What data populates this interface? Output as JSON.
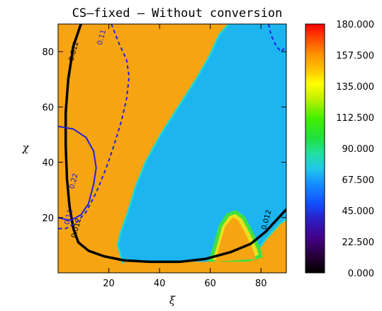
{
  "chart_data": {
    "type": "heatmap",
    "title": "CS–fixed – Without conversion",
    "xlabel": "ξ",
    "ylabel": "χ",
    "xlim": [
      0,
      90
    ],
    "ylim": [
      0,
      90
    ],
    "x_ticks": [
      20,
      40,
      60,
      80
    ],
    "y_ticks": [
      20,
      40,
      60,
      80
    ],
    "colorbar": {
      "range": [
        0,
        180
      ],
      "tick_labels": [
        "0.000",
        "22.500",
        "45.000",
        "67.500",
        "90.000",
        "112.500",
        "135.000",
        "157.500",
        "180.000"
      ],
      "tick_values": [
        0,
        22.5,
        45,
        67.5,
        90,
        112.5,
        135,
        157.5,
        180
      ]
    },
    "background_value": 148,
    "regions": [
      {
        "value": 72,
        "polygon": [
          [
            27,
            90
          ],
          [
            31,
            90
          ],
          [
            36,
            90
          ],
          [
            72,
            90
          ],
          [
            90,
            90
          ],
          [
            90,
            52
          ],
          [
            89,
            30
          ],
          [
            86,
            23
          ],
          [
            80,
            16
          ],
          [
            74,
            10
          ],
          [
            70,
            7
          ],
          [
            60,
            5
          ],
          [
            48,
            4
          ],
          [
            36,
            4
          ],
          [
            26,
            3
          ],
          [
            24,
            6
          ],
          [
            25,
            13
          ],
          [
            26,
            20
          ],
          [
            28,
            26
          ],
          [
            30,
            32
          ],
          [
            33,
            40
          ],
          [
            38,
            48
          ],
          [
            44,
            56
          ],
          [
            50,
            64
          ],
          [
            56,
            72
          ],
          [
            63,
            82
          ],
          [
            66,
            90
          ]
        ]
      }
    ],
    "region_fill_override": {
      "main_region": [
        [
          68,
          90
        ],
        [
          90,
          90
        ],
        [
          90,
          20
        ],
        [
          87,
          18
        ],
        [
          82,
          13
        ],
        [
          77,
          7
        ],
        [
          70,
          4
        ],
        [
          56,
          4
        ],
        [
          40,
          4
        ],
        [
          26,
          4
        ],
        [
          24,
          10
        ],
        [
          25,
          14
        ],
        [
          28,
          22
        ],
        [
          31,
          31
        ],
        [
          35,
          40
        ],
        [
          41,
          50
        ],
        [
          48,
          60
        ],
        [
          55,
          70
        ],
        [
          60,
          78
        ],
        [
          64,
          86
        ]
      ]
    },
    "contours": [
      {
        "label": "0.012",
        "style": "solid",
        "color": "#000000",
        "label_positions": [
          [
            7,
            80
          ],
          [
            8,
            16
          ],
          [
            83,
            19
          ]
        ],
        "points": [
          [
            9,
            90
          ],
          [
            6,
            82
          ],
          [
            4,
            70
          ],
          [
            3,
            58
          ],
          [
            3,
            46
          ],
          [
            3.5,
            34
          ],
          [
            4.5,
            24
          ],
          [
            6,
            16
          ],
          [
            8,
            11
          ],
          [
            12,
            8
          ],
          [
            18,
            6
          ],
          [
            26,
            4.5
          ],
          [
            36,
            4
          ],
          [
            48,
            4
          ],
          [
            58,
            5
          ],
          [
            68,
            7.5
          ],
          [
            76,
            10.5
          ],
          [
            82,
            15
          ],
          [
            86,
            19
          ],
          [
            90,
            23
          ]
        ]
      },
      {
        "label": "0.11",
        "style": "dashed",
        "color": "#2020dd",
        "label_positions": [
          [
            18,
            85
          ],
          [
            5,
            20
          ]
        ],
        "points": [
          [
            21,
            90
          ],
          [
            24,
            83
          ],
          [
            27,
            77
          ],
          [
            28,
            71
          ],
          [
            27,
            63
          ],
          [
            25,
            55
          ],
          [
            22,
            46
          ],
          [
            19,
            38
          ],
          [
            15,
            29
          ],
          [
            11,
            22
          ],
          [
            7,
            18
          ],
          [
            3,
            16
          ],
          [
            0,
            16
          ]
        ]
      },
      {
        "label": "0.11",
        "style": "dashed",
        "color": "#2020dd",
        "label_positions": [],
        "points": [
          [
            83,
            90
          ],
          [
            84,
            86
          ],
          [
            86,
            82
          ],
          [
            88,
            80
          ],
          [
            90,
            82
          ]
        ]
      },
      {
        "label": "0.22",
        "style": "solid",
        "color": "#2020dd",
        "label_positions": [
          [
            7,
            33
          ]
        ],
        "points": [
          [
            0,
            53
          ],
          [
            6,
            52
          ],
          [
            11,
            49
          ],
          [
            14,
            44
          ],
          [
            15,
            38
          ],
          [
            14,
            32
          ],
          [
            12,
            25
          ],
          [
            9,
            21
          ],
          [
            5,
            19
          ],
          [
            2,
            19.5
          ],
          [
            0,
            20
          ]
        ]
      }
    ]
  }
}
